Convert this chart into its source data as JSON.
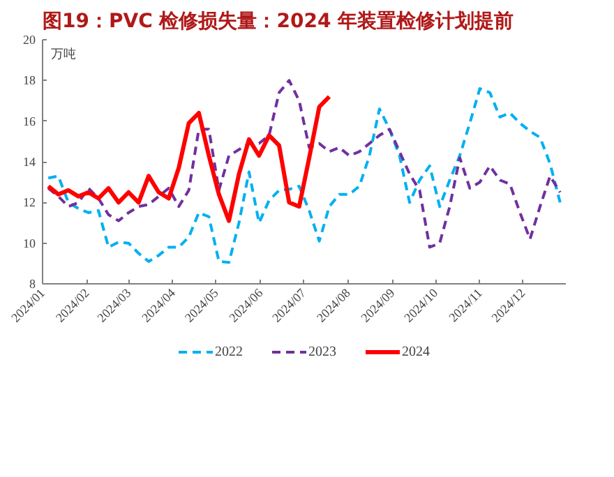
{
  "chart_data": {
    "type": "line",
    "title": "图19：PVC 检修损失量：2024 年装置检修计划提前",
    "ylabel": "万吨",
    "x": [
      "2024-01-05",
      "2024-01-12",
      "2024-01-19",
      "2024-01-26",
      "2024-02-02",
      "2024-02-09",
      "2024-02-16",
      "2024-02-23",
      "2024-03-01",
      "2024-03-08",
      "2024-03-15",
      "2024-03-22",
      "2024-03-29",
      "2024-04-05",
      "2024-04-12",
      "2024-04-19",
      "2024-04-26",
      "2024-05-03",
      "2024-05-10",
      "2024-05-17",
      "2024-05-24",
      "2024-05-31",
      "2024-06-07",
      "2024-06-14",
      "2024-06-21",
      "2024-06-28",
      "2024-07-05",
      "2024-07-12",
      "2024-07-19",
      "2024-07-26",
      "2024-08-02",
      "2024-08-09",
      "2024-08-16",
      "2024-08-23",
      "2024-08-30",
      "2024-09-06",
      "2024-09-13",
      "2024-09-20",
      "2024-09-27",
      "2024-10-04",
      "2024-10-11",
      "2024-10-18",
      "2024-10-25",
      "2024-11-01",
      "2024-11-08",
      "2024-11-15",
      "2024-11-22",
      "2024-11-29",
      "2024-12-06",
      "2024-12-13",
      "2024-12-20",
      "2024-12-27"
    ],
    "series": [
      {
        "name": "2022",
        "color": "#00b0f0",
        "line_style": "dashed",
        "values": [
          13.2,
          13.3,
          12.0,
          11.7,
          11.5,
          11.6,
          9.8,
          10.05,
          10.0,
          9.5,
          9.1,
          9.4,
          9.8,
          9.8,
          10.3,
          11.5,
          11.3,
          9.1,
          9.05,
          11.0,
          13.5,
          11.0,
          12.1,
          12.6,
          12.65,
          12.8,
          11.6,
          10.1,
          11.8,
          12.4,
          12.4,
          12.8,
          14.3,
          16.6,
          15.6,
          14.3,
          12.0,
          13.1,
          13.8,
          11.8,
          13.1,
          14.3,
          15.9,
          17.6,
          17.4,
          16.2,
          16.4,
          15.9,
          15.5,
          15.2,
          13.9,
          12.0
        ]
      },
      {
        "name": "2023",
        "color": "#7030a0",
        "line_style": "dashed",
        "values": [
          12.7,
          12.3,
          11.8,
          12.0,
          12.7,
          12.2,
          11.4,
          11.1,
          11.5,
          11.8,
          11.9,
          12.3,
          12.7,
          11.8,
          12.6,
          15.6,
          15.6,
          12.6,
          14.3,
          14.6,
          14.9,
          14.9,
          15.3,
          17.4,
          18.0,
          17.0,
          14.7,
          14.9,
          14.5,
          14.7,
          14.3,
          14.5,
          14.9,
          15.3,
          15.6,
          14.5,
          13.4,
          12.6,
          9.8,
          10.0,
          11.8,
          14.2,
          12.7,
          13.0,
          13.8,
          13.1,
          12.9,
          11.5,
          10.2,
          11.8,
          13.3,
          12.5
        ]
      },
      {
        "name": "2024",
        "color": "#ff0000",
        "line_style": "solid",
        "values": [
          12.8,
          12.4,
          12.6,
          12.3,
          12.5,
          12.2,
          12.7,
          12.0,
          12.5,
          12.0,
          13.3,
          12.5,
          12.2,
          13.7,
          15.9,
          16.4,
          14.3,
          12.4,
          11.1,
          13.4,
          15.1,
          14.3,
          15.3,
          14.8,
          12.0,
          11.8,
          14.2,
          16.7,
          17.2,
          null,
          null,
          null,
          null,
          null,
          null,
          null,
          null,
          null,
          null,
          null,
          null,
          null,
          null,
          null,
          null,
          null,
          null,
          null,
          null,
          null,
          null,
          null
        ]
      }
    ],
    "xlim": [
      "2024-01-01",
      "2024-12-31"
    ],
    "xticks": [
      {
        "value": "2024-01-01",
        "label": "2024/01"
      },
      {
        "value": "2024-02-01",
        "label": "2024/02"
      },
      {
        "value": "2024-03-01",
        "label": "2024/03"
      },
      {
        "value": "2024-04-01",
        "label": "2024/04"
      },
      {
        "value": "2024-05-01",
        "label": "2024/05"
      },
      {
        "value": "2024-06-01",
        "label": "2024/06"
      },
      {
        "value": "2024-07-01",
        "label": "2024/07"
      },
      {
        "value": "2024-08-01",
        "label": "2024/08"
      },
      {
        "value": "2024-09-01",
        "label": "2024/09"
      },
      {
        "value": "2024-10-01",
        "label": "2024/10"
      },
      {
        "value": "2024-11-01",
        "label": "2024/11"
      },
      {
        "value": "2024-12-01",
        "label": "2024/12"
      }
    ],
    "ylim": [
      8,
      20
    ],
    "yticks": [
      8,
      10,
      12,
      14,
      16,
      18,
      20
    ],
    "grid": false,
    "legend": "bottom",
    "marker": "none"
  }
}
